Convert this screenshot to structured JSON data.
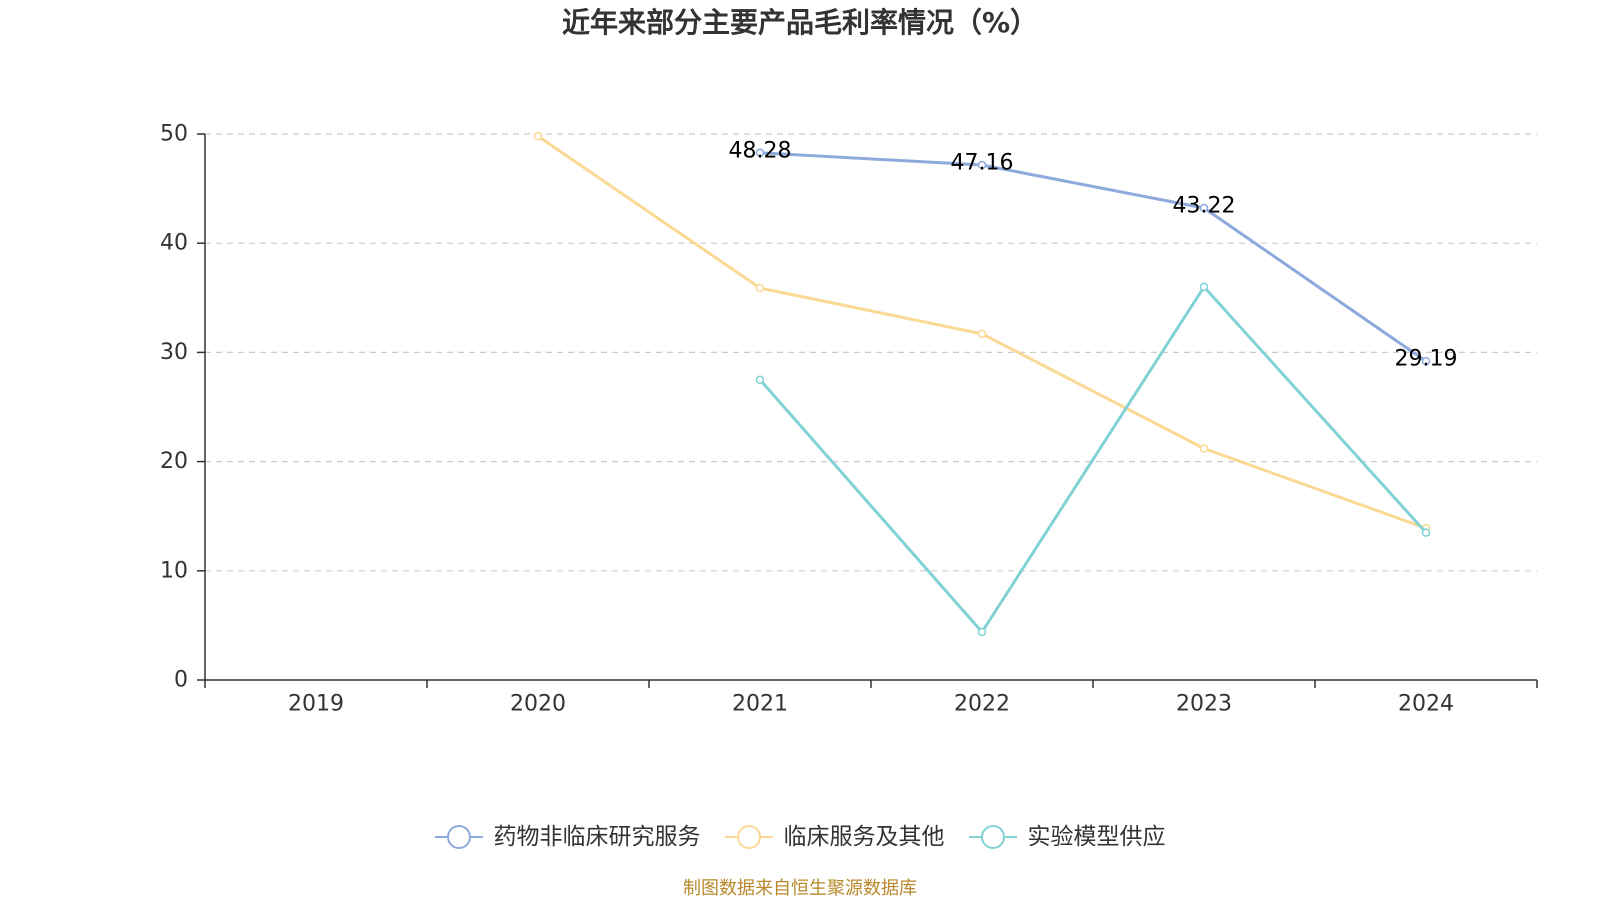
{
  "chart_data": {
    "type": "line",
    "title": "近年来部分主要产品毛利率情况（%）",
    "categories": [
      "2019",
      "2020",
      "2021",
      "2022",
      "2023",
      "2024"
    ],
    "ylim": [
      0,
      50
    ],
    "yticks": [
      0,
      10,
      20,
      30,
      40,
      50
    ],
    "grid": true,
    "legend_position": "bottom",
    "series": [
      {
        "name": "药物非临床研究服务",
        "color": "#8eaadc",
        "show_labels": true,
        "values": [
          null,
          null,
          48.28,
          47.16,
          43.22,
          29.19
        ]
      },
      {
        "name": "临床服务及其他",
        "color": "#fbd994",
        "show_labels": false,
        "values": [
          null,
          49.8,
          35.9,
          31.7,
          21.2,
          13.9
        ]
      },
      {
        "name": "实验模型供应",
        "color": "#81d2d5",
        "show_labels": false,
        "values": [
          null,
          null,
          27.5,
          4.4,
          36.0,
          13.5
        ]
      }
    ]
  },
  "source": "制图数据来自恒生聚源数据库",
  "colors": {
    "title": "#333333",
    "axis": "#333333",
    "axis_label": "#333333",
    "grid": "#cccccc",
    "data_label": "#000000",
    "legend_text": "#333333",
    "source": "#b8892c",
    "marker_fill": "#ffffff"
  }
}
